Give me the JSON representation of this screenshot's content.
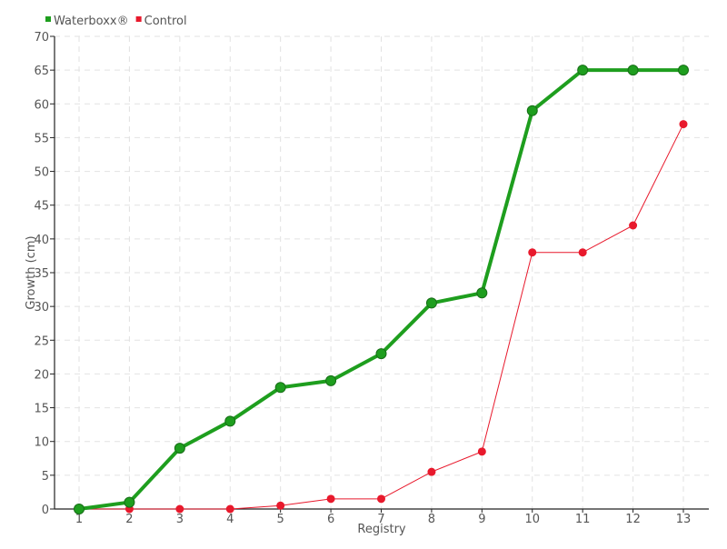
{
  "chart_data": {
    "type": "line",
    "title": "",
    "xlabel": "Registry",
    "ylabel": "Growth (cm)",
    "x": [
      1,
      2,
      3,
      4,
      5,
      6,
      7,
      8,
      9,
      10,
      11,
      12,
      13
    ],
    "ylim": [
      0,
      70
    ],
    "ytick_step": 5,
    "grid": true,
    "legend_placement": "top-left",
    "series": [
      {
        "name": "Waterboxx®",
        "color": "#1e9e1e",
        "values": [
          0,
          1,
          9,
          13,
          18,
          19,
          23,
          30.5,
          32,
          59,
          65,
          65,
          65
        ]
      },
      {
        "name": "Control",
        "color": "#e8192c",
        "values": [
          0,
          0,
          0,
          0,
          0.5,
          1.5,
          1.5,
          5.5,
          8.5,
          38,
          38,
          42,
          57
        ]
      }
    ]
  }
}
